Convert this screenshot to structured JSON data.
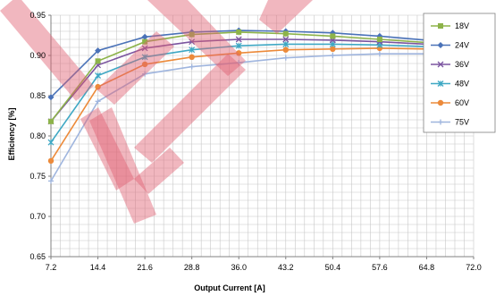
{
  "chart_data": {
    "type": "line",
    "title": "",
    "xlabel": "Output Current [A]",
    "ylabel": "Efficiency [%]",
    "x": [
      7.2,
      14.4,
      21.6,
      28.8,
      36.0,
      43.2,
      50.4,
      57.6,
      64.8,
      72.0
    ],
    "x_tick_labels": [
      "7.2",
      "14.4",
      "21.6",
      "28.8",
      "36.0",
      "43.2",
      "50.4",
      "57.6",
      "64.8",
      "72.0"
    ],
    "xlim": [
      7.2,
      72.0
    ],
    "ylim": [
      0.65,
      0.95
    ],
    "y_ticks": [
      0.65,
      0.7,
      0.75,
      0.8,
      0.85,
      0.9,
      0.95
    ],
    "y_tick_labels": [
      "0.65",
      "0.70",
      "0.75",
      "0.80",
      "0.85",
      "0.90",
      "0.95"
    ],
    "grid": true,
    "legend_position": "right",
    "series": [
      {
        "name": "18V",
        "color": "#8db34a",
        "marker": "square",
        "values": [
          0.818,
          0.893,
          0.917,
          0.926,
          0.929,
          0.927,
          0.924,
          0.92,
          0.916,
          0.912
        ]
      },
      {
        "name": "24V",
        "color": "#4a72b8",
        "marker": "diamond",
        "values": [
          0.848,
          0.906,
          0.923,
          0.929,
          0.931,
          0.93,
          0.928,
          0.924,
          0.919,
          0.914
        ]
      },
      {
        "name": "36V",
        "color": "#7b55a0",
        "marker": "x",
        "values": [
          0.818,
          0.888,
          0.909,
          0.917,
          0.92,
          0.92,
          0.919,
          0.917,
          0.914,
          0.911
        ]
      },
      {
        "name": "48V",
        "color": "#3fa8c4",
        "marker": "star",
        "values": [
          0.792,
          0.875,
          0.898,
          0.907,
          0.912,
          0.914,
          0.914,
          0.913,
          0.911,
          0.908
        ]
      },
      {
        "name": "60V",
        "color": "#ec8a3a",
        "marker": "circle",
        "values": [
          0.769,
          0.861,
          0.889,
          0.898,
          0.903,
          0.907,
          0.908,
          0.909,
          0.908,
          0.906
        ]
      },
      {
        "name": "75V",
        "color": "#9fb5de",
        "marker": "plus",
        "values": [
          0.744,
          0.843,
          0.877,
          0.886,
          0.891,
          0.897,
          0.9,
          0.902,
          0.902,
          0.903
        ]
      }
    ]
  },
  "colors": {
    "watermark": "#e06070",
    "grid": "#c8c8c8",
    "axis": "#808080",
    "legend_border": "#808080"
  }
}
